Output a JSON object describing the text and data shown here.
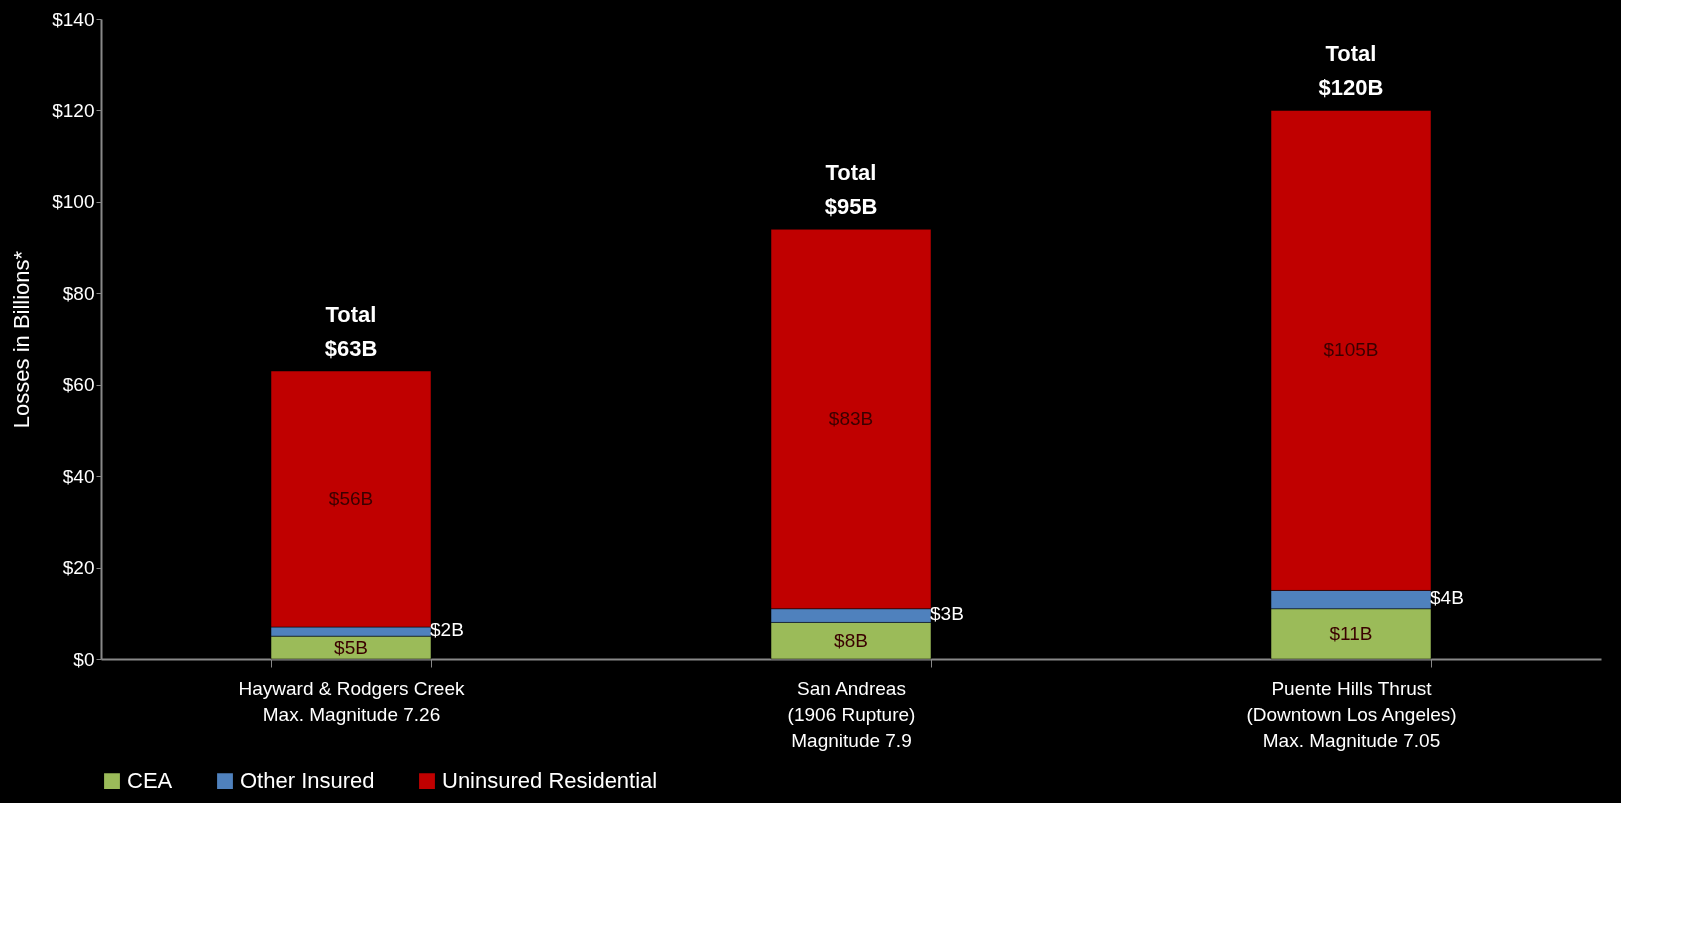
{
  "chart_data": {
    "type": "bar",
    "stacked": true,
    "ylabel": "Losses in Billions*",
    "categories": [
      "Hayward & Rodgers Creek\nMax. Magnitude 7.26",
      "San Andreas\n(1906 Rupture)\nMagnitude 7.9",
      "Puente Hills Thrust\n(Downtown Los Angeles)\nMax. Magnitude 7.05"
    ],
    "series": [
      {
        "name": "CEA",
        "color": "#9bbb59",
        "values": [
          5,
          8,
          11
        ],
        "value_labels": [
          "$5B",
          "$8B",
          "$11B"
        ]
      },
      {
        "name": "Other Insured",
        "color": "#4f81bd",
        "values": [
          2,
          3,
          4
        ],
        "value_labels": [
          "$2B",
          "$3B",
          "$4B"
        ]
      },
      {
        "name": "Uninsured Residential",
        "color": "#c00000",
        "values": [
          56,
          83,
          105
        ],
        "value_labels": [
          "$56B",
          "$83B",
          "$105B"
        ]
      }
    ],
    "totals": [
      "Total\n$63B",
      "Total\n$95B",
      "Total\n$120B"
    ],
    "ylim": [
      0,
      140
    ],
    "yticks": [
      {
        "value": 0,
        "label": "$0"
      },
      {
        "value": 20,
        "label": "$20"
      },
      {
        "value": 40,
        "label": "$40"
      },
      {
        "value": 60,
        "label": "$60"
      },
      {
        "value": 80,
        "label": "$80"
      },
      {
        "value": 100,
        "label": "$100"
      },
      {
        "value": 120,
        "label": "$120"
      },
      {
        "value": 140,
        "label": "$140"
      }
    ],
    "grid": false,
    "legend": "bottom"
  }
}
